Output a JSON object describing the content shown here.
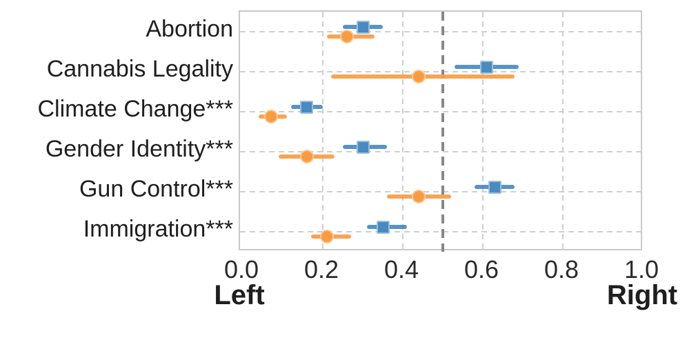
{
  "chart_data": {
    "type": "scatter",
    "subtype": "pointrange-dotplot-with-error-bars",
    "title": "",
    "categories": [
      "Abortion",
      "Cannabis Legality",
      "Climate Change***",
      "Gender Identity***",
      "Gun Control***",
      "Immigration***"
    ],
    "series": [
      {
        "name": "blue-square-series",
        "marker": "square",
        "color": "#4a8ac0",
        "values": [
          0.3,
          0.61,
          0.16,
          0.3,
          0.63,
          0.35
        ],
        "ci_low": [
          0.25,
          0.53,
          0.12,
          0.25,
          0.58,
          0.31
        ],
        "ci_high": [
          0.35,
          0.69,
          0.2,
          0.36,
          0.68,
          0.41
        ]
      },
      {
        "name": "orange-circle-series",
        "marker": "circle",
        "color": "#f89c43",
        "values": [
          0.26,
          0.44,
          0.07,
          0.16,
          0.44,
          0.21
        ],
        "ci_low": [
          0.21,
          0.22,
          0.04,
          0.09,
          0.36,
          0.17
        ],
        "ci_high": [
          0.33,
          0.68,
          0.11,
          0.23,
          0.52,
          0.27
        ]
      }
    ],
    "x_axis": {
      "min": 0,
      "max": 1,
      "tick_labels": [
        "0.0",
        "0.2",
        "0.4",
        "0.6",
        "0.8",
        "1.0"
      ],
      "tick_values": [
        0,
        0.2,
        0.4,
        0.6,
        0.8,
        1.0
      ],
      "left_end_label": "Left",
      "right_end_label": "Right"
    },
    "reference_line": {
      "value": 0.5,
      "style": "dashed",
      "color": "#878787"
    },
    "grid": {
      "visible": true,
      "style": "dashed",
      "color": "#cfcfcf"
    },
    "legend": "none",
    "plot_border_color": "#c9c9c9"
  }
}
